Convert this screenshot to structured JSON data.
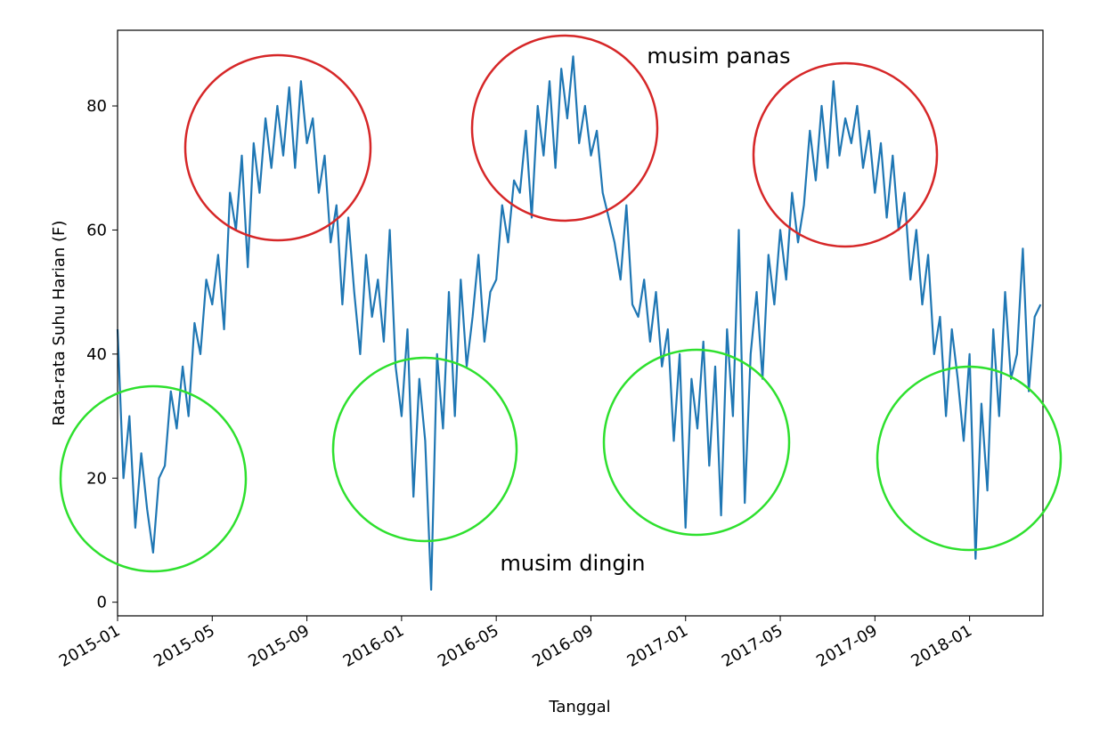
{
  "chart_data": {
    "type": "line",
    "x_label": "Tanggal",
    "y_label": "Rata-rata Suhu Harian (F)",
    "color": "#1f77b4",
    "annotations": [
      {
        "text": "musim panas",
        "color": "#d62728"
      },
      {
        "text": "musim dingin",
        "color": "#2ee02e"
      }
    ],
    "xlim": [
      0,
      39.1
    ],
    "ylim": [
      -2.2,
      92.2
    ],
    "xticks": [
      {
        "value": 0,
        "label": "2015-01"
      },
      {
        "value": 4,
        "label": "2015-05"
      },
      {
        "value": 8,
        "label": "2015-09"
      },
      {
        "value": 12,
        "label": "2016-01"
      },
      {
        "value": 16,
        "label": "2016-05"
      },
      {
        "value": 20,
        "label": "2016-09"
      },
      {
        "value": 24,
        "label": "2017-01"
      },
      {
        "value": 28,
        "label": "2017-05"
      },
      {
        "value": 32,
        "label": "2017-09"
      },
      {
        "value": 36,
        "label": "2018-01"
      }
    ],
    "yticks": [
      0,
      20,
      40,
      60,
      80
    ],
    "x": [
      0,
      0.25,
      0.5,
      0.75,
      1,
      1.25,
      1.5,
      1.75,
      2,
      2.25,
      2.5,
      2.75,
      3,
      3.25,
      3.5,
      3.75,
      4,
      4.25,
      4.5,
      4.75,
      5,
      5.25,
      5.5,
      5.75,
      6,
      6.25,
      6.5,
      6.75,
      7,
      7.25,
      7.5,
      7.75,
      8,
      8.25,
      8.5,
      8.75,
      9,
      9.25,
      9.5,
      9.75,
      10,
      10.25,
      10.5,
      10.75,
      11,
      11.25,
      11.5,
      11.75,
      12,
      12.25,
      12.5,
      12.75,
      13,
      13.25,
      13.5,
      13.75,
      14,
      14.25,
      14.5,
      14.75,
      15,
      15.25,
      15.5,
      15.75,
      16,
      16.25,
      16.5,
      16.75,
      17,
      17.25,
      17.5,
      17.75,
      18,
      18.25,
      18.5,
      18.75,
      19,
      19.25,
      19.5,
      19.75,
      20,
      20.25,
      20.5,
      20.75,
      21,
      21.25,
      21.5,
      21.75,
      22,
      22.25,
      22.5,
      22.75,
      23,
      23.25,
      23.5,
      23.75,
      24,
      24.25,
      24.5,
      24.75,
      25,
      25.25,
      25.5,
      25.75,
      26,
      26.25,
      26.5,
      26.75,
      27,
      27.25,
      27.5,
      27.75,
      28,
      28.25,
      28.5,
      28.75,
      29,
      29.25,
      29.5,
      29.75,
      30,
      30.25,
      30.5,
      30.75,
      31,
      31.25,
      31.5,
      31.75,
      32,
      32.25,
      32.5,
      32.75,
      33,
      33.25,
      33.5,
      33.75,
      34,
      34.25,
      34.5,
      34.75,
      35,
      35.25,
      35.5,
      35.75,
      36,
      36.25,
      36.5,
      36.75,
      37,
      37.25,
      37.5,
      37.75,
      38,
      38.25,
      38.5,
      38.75,
      39
    ],
    "values": [
      44,
      20,
      30,
      12,
      24,
      15,
      8,
      20,
      22,
      34,
      28,
      38,
      30,
      45,
      40,
      52,
      48,
      56,
      44,
      66,
      60,
      72,
      54,
      74,
      66,
      78,
      70,
      80,
      72,
      83,
      70,
      84,
      74,
      78,
      66,
      72,
      58,
      64,
      48,
      62,
      50,
      40,
      56,
      46,
      52,
      42,
      60,
      38,
      30,
      44,
      17,
      36,
      26,
      2,
      40,
      28,
      50,
      30,
      52,
      38,
      46,
      56,
      42,
      50,
      52,
      64,
      58,
      68,
      66,
      76,
      62,
      80,
      72,
      84,
      70,
      86,
      78,
      88,
      74,
      80,
      72,
      76,
      66,
      62,
      58,
      52,
      64,
      48,
      46,
      52,
      42,
      50,
      38,
      44,
      26,
      40,
      12,
      36,
      28,
      42,
      22,
      38,
      14,
      44,
      30,
      60,
      16,
      40,
      50,
      36,
      56,
      48,
      60,
      52,
      66,
      58,
      64,
      76,
      68,
      80,
      70,
      84,
      72,
      78,
      74,
      80,
      70,
      76,
      66,
      74,
      62,
      72,
      60,
      66,
      52,
      60,
      48,
      56,
      40,
      46,
      30,
      44,
      36,
      26,
      40,
      7,
      32,
      18,
      44,
      30,
      50,
      36,
      40,
      57,
      34,
      46,
      48
    ]
  }
}
